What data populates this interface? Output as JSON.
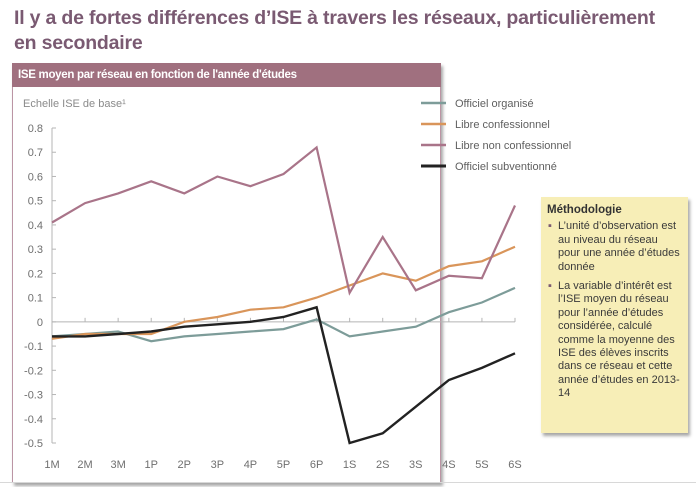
{
  "page": {
    "title": "Il y a de fortes différences d’ISE à travers les réseaux, particulièrement en secondaire"
  },
  "panel": {
    "header": "ISE moyen par réseau en fonction de l'année d'études"
  },
  "methodology": {
    "title": "Méthodologie",
    "bullets": [
      "L’unité d’observation est au niveau du réseau pour une année d’études donnée",
      "La variable d’intérêt est l’ISE moyen du réseau pour l’année d’études considérée, calculé comme la moyenne des ISE des élèves inscrits dans ce réseau et cette année d’études en 2013-14"
    ]
  },
  "chart_data": {
    "type": "line",
    "title": "ISE moyen par réseau en fonction de l'année d'études",
    "xlabel": "",
    "ylabel": "Echelle ISE de base¹",
    "categories": [
      "1M",
      "2M",
      "3M",
      "1P",
      "2P",
      "3P",
      "4P",
      "5P",
      "6P",
      "1S",
      "2S",
      "3S",
      "4S",
      "5S",
      "6S"
    ],
    "ylim": [
      -0.5,
      0.8
    ],
    "yticks": [
      0.8,
      0.7,
      0.6,
      0.5,
      0.4,
      0.3,
      0.2,
      0.1,
      0,
      -0.1,
      -0.2,
      -0.3,
      -0.4,
      -0.5
    ],
    "ytick_labels": [
      "0.8",
      "0.7",
      "0.6",
      "0.5",
      "0.4",
      "0.3",
      "0.2",
      "0.1",
      "0",
      "-0.1",
      "-0.2",
      "-0.3",
      "-0.4",
      "-0.5"
    ],
    "grid": false,
    "legend_position": "top-right",
    "series": [
      {
        "name": "Officiel organisé",
        "color": "#7d9c99",
        "values": [
          -0.06,
          -0.05,
          -0.04,
          -0.08,
          -0.06,
          -0.05,
          -0.04,
          -0.03,
          0.01,
          -0.06,
          -0.04,
          -0.02,
          0.04,
          0.08,
          0.14
        ]
      },
      {
        "name": "Libre confessionnel",
        "color": "#d9955a",
        "values": [
          -0.07,
          -0.05,
          -0.05,
          -0.05,
          0.0,
          0.02,
          0.05,
          0.06,
          0.1,
          0.15,
          0.2,
          0.17,
          0.23,
          0.25,
          0.31
        ]
      },
      {
        "name": "Libre non confessionnel",
        "color": "#a97489",
        "values": [
          0.41,
          0.49,
          0.53,
          0.58,
          0.53,
          0.6,
          0.56,
          0.61,
          0.72,
          0.12,
          0.35,
          0.13,
          0.19,
          0.18,
          0.48
        ]
      },
      {
        "name": "Officiel subventionné",
        "color": "#222222",
        "values": [
          -0.06,
          -0.06,
          -0.05,
          -0.04,
          -0.02,
          -0.01,
          0.0,
          0.02,
          0.06,
          -0.5,
          -0.46,
          -0.35,
          -0.24,
          -0.19,
          -0.13
        ]
      }
    ]
  }
}
